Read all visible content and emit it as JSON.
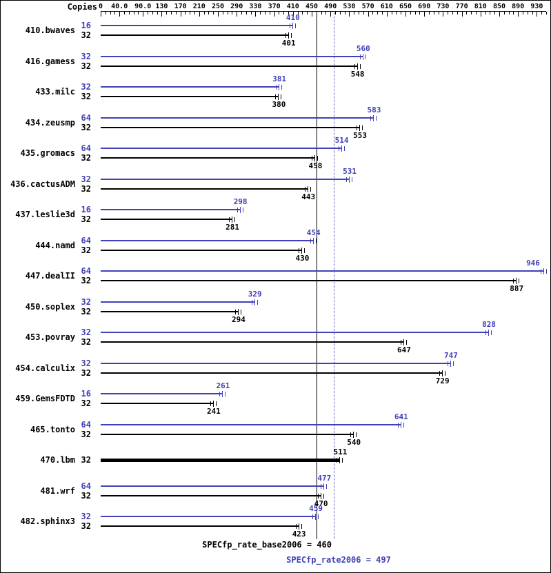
{
  "header": {
    "copies_label": "Copies"
  },
  "colors": {
    "peak": "#4040b8",
    "base": "#000000"
  },
  "chart_data": {
    "type": "bar",
    "orientation": "horizontal",
    "axis": {
      "min": 0,
      "max": 950,
      "minor_step": 10,
      "ticks": [
        {
          "v": 0,
          "label": "0"
        },
        {
          "v": 40,
          "label": "40.0"
        },
        {
          "v": 90,
          "label": "90.0"
        },
        {
          "v": 130,
          "label": "130"
        },
        {
          "v": 170,
          "label": "170"
        },
        {
          "v": 210,
          "label": "210"
        },
        {
          "v": 250,
          "label": "250"
        },
        {
          "v": 290,
          "label": "290"
        },
        {
          "v": 330,
          "label": "330"
        },
        {
          "v": 370,
          "label": "370"
        },
        {
          "v": 410,
          "label": "410"
        },
        {
          "v": 450,
          "label": "450"
        },
        {
          "v": 490,
          "label": "490"
        },
        {
          "v": 530,
          "label": "530"
        },
        {
          "v": 570,
          "label": "570"
        },
        {
          "v": 610,
          "label": "610"
        },
        {
          "v": 650,
          "label": "650"
        },
        {
          "v": 690,
          "label": "690"
        },
        {
          "v": 730,
          "label": "730"
        },
        {
          "v": 770,
          "label": "770"
        },
        {
          "v": 810,
          "label": "810"
        },
        {
          "v": 850,
          "label": "850"
        },
        {
          "v": 890,
          "label": "890"
        },
        {
          "v": 930,
          "label": "930"
        }
      ]
    },
    "reference_lines": [
      {
        "name": "base",
        "label": "SPECfp_rate_base2006",
        "value": 460,
        "style": "solid",
        "color": "#000000"
      },
      {
        "name": "peak",
        "label": "SPECfp_rate2006",
        "value": 497,
        "style": "dotted",
        "color": "#4040b8"
      }
    ],
    "benchmarks": [
      {
        "name": "410.bwaves",
        "bars": [
          {
            "kind": "peak",
            "copies": "16",
            "value": 410
          },
          {
            "kind": "base",
            "copies": "32",
            "value": 401
          }
        ]
      },
      {
        "name": "416.gamess",
        "bars": [
          {
            "kind": "peak",
            "copies": "32",
            "value": 560
          },
          {
            "kind": "base",
            "copies": "32",
            "value": 548
          }
        ]
      },
      {
        "name": "433.milc",
        "bars": [
          {
            "kind": "peak",
            "copies": "32",
            "value": 381
          },
          {
            "kind": "base",
            "copies": "32",
            "value": 380
          }
        ]
      },
      {
        "name": "434.zeusmp",
        "bars": [
          {
            "kind": "peak",
            "copies": "64",
            "value": 583
          },
          {
            "kind": "base",
            "copies": "32",
            "value": 553
          }
        ]
      },
      {
        "name": "435.gromacs",
        "bars": [
          {
            "kind": "peak",
            "copies": "64",
            "value": 514
          },
          {
            "kind": "base",
            "copies": "32",
            "value": 458
          }
        ]
      },
      {
        "name": "436.cactusADM",
        "bars": [
          {
            "kind": "peak",
            "copies": "32",
            "value": 531
          },
          {
            "kind": "base",
            "copies": "32",
            "value": 443
          }
        ]
      },
      {
        "name": "437.leslie3d",
        "bars": [
          {
            "kind": "peak",
            "copies": "16",
            "value": 298
          },
          {
            "kind": "base",
            "copies": "32",
            "value": 281
          }
        ]
      },
      {
        "name": "444.namd",
        "bars": [
          {
            "kind": "peak",
            "copies": "64",
            "value": 454
          },
          {
            "kind": "base",
            "copies": "32",
            "value": 430
          }
        ]
      },
      {
        "name": "447.dealII",
        "bars": [
          {
            "kind": "peak",
            "copies": "64",
            "value": 946
          },
          {
            "kind": "base",
            "copies": "32",
            "value": 887
          }
        ]
      },
      {
        "name": "450.soplex",
        "bars": [
          {
            "kind": "peak",
            "copies": "32",
            "value": 329
          },
          {
            "kind": "base",
            "copies": "32",
            "value": 294
          }
        ]
      },
      {
        "name": "453.povray",
        "bars": [
          {
            "kind": "peak",
            "copies": "32",
            "value": 828
          },
          {
            "kind": "base",
            "copies": "32",
            "value": 647
          }
        ]
      },
      {
        "name": "454.calculix",
        "bars": [
          {
            "kind": "peak",
            "copies": "32",
            "value": 747
          },
          {
            "kind": "base",
            "copies": "32",
            "value": 729
          }
        ]
      },
      {
        "name": "459.GemsFDTD",
        "bars": [
          {
            "kind": "peak",
            "copies": "16",
            "value": 261
          },
          {
            "kind": "base",
            "copies": "32",
            "value": 241
          }
        ]
      },
      {
        "name": "465.tonto",
        "bars": [
          {
            "kind": "peak",
            "copies": "64",
            "value": 641
          },
          {
            "kind": "base",
            "copies": "32",
            "value": 540
          }
        ]
      },
      {
        "name": "470.lbm",
        "bars": [
          {
            "kind": "single",
            "copies": "32",
            "value": 511
          }
        ]
      },
      {
        "name": "481.wrf",
        "bars": [
          {
            "kind": "peak",
            "copies": "64",
            "value": 477
          },
          {
            "kind": "base",
            "copies": "32",
            "value": 470
          }
        ]
      },
      {
        "name": "482.sphinx3",
        "bars": [
          {
            "kind": "peak",
            "copies": "32",
            "value": 459
          },
          {
            "kind": "base",
            "copies": "32",
            "value": 423
          }
        ]
      }
    ],
    "footer": [
      {
        "label": "SPECfp_rate_base2006 = 460"
      },
      {
        "label": "SPECfp_rate2006 = 497"
      }
    ]
  }
}
